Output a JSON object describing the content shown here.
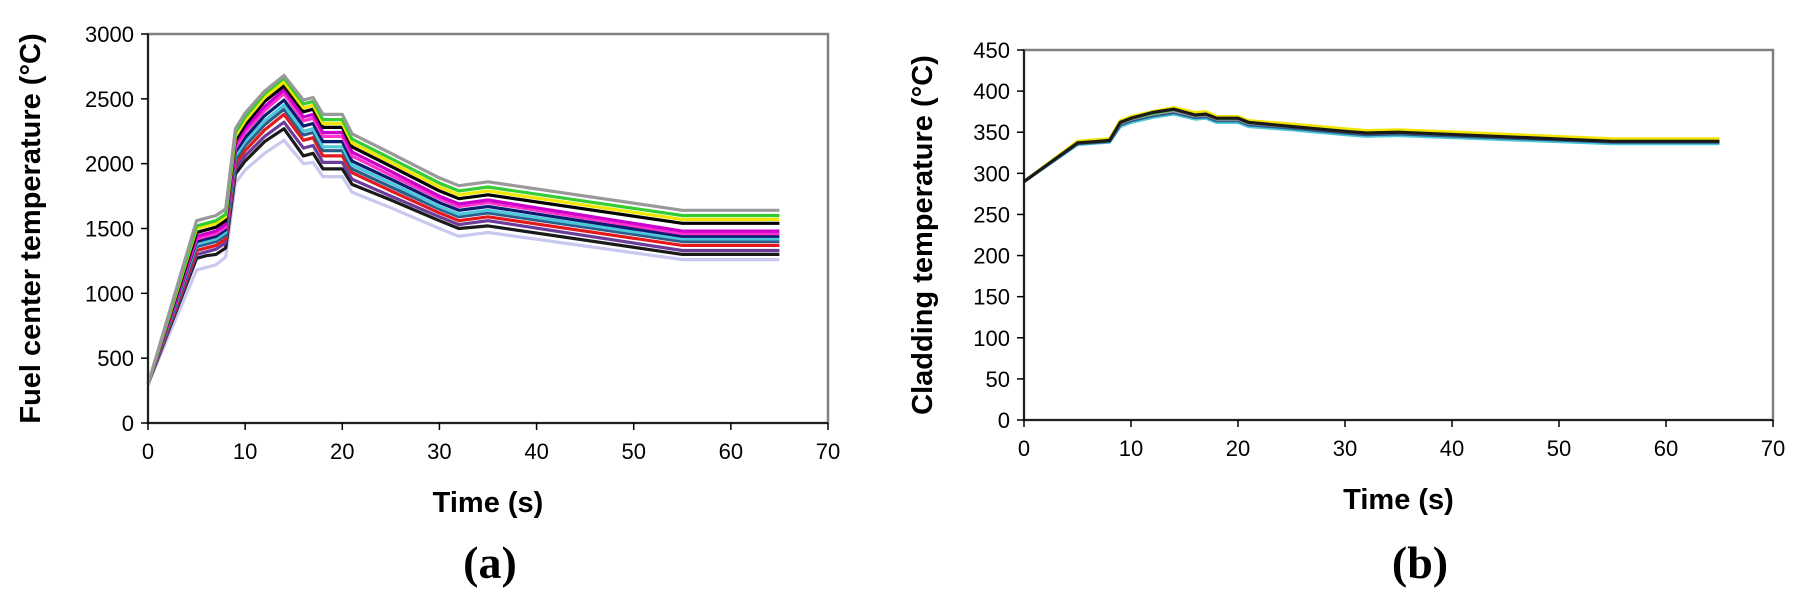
{
  "chart_data": [
    {
      "type": "line",
      "panel_label": "(a)",
      "xlabel": "Time (s)",
      "ylabel": "Fuel center temperature (°C)",
      "xlim": [
        0,
        70
      ],
      "ylim": [
        0,
        3000
      ],
      "xticks": [
        0,
        10,
        20,
        30,
        40,
        50,
        60,
        70
      ],
      "yticks": [
        0,
        500,
        1000,
        1500,
        2000,
        2500,
        3000
      ],
      "grid": false,
      "x": [
        0,
        5,
        6,
        7,
        8,
        9,
        10,
        12,
        14,
        16,
        17,
        18,
        20,
        21,
        25,
        30,
        32,
        35,
        55,
        65
      ],
      "series": [
        {
          "color": "#c8c8f0",
          "values": [
            300,
            1180,
            1200,
            1220,
            1280,
            1850,
            1950,
            2080,
            2180,
            2000,
            2010,
            1900,
            1900,
            1780,
            1660,
            1500,
            1440,
            1470,
            1260,
            1260
          ]
        },
        {
          "color": "#1a1a1a",
          "values": [
            300,
            1270,
            1290,
            1300,
            1350,
            1920,
            2020,
            2170,
            2270,
            2060,
            2080,
            1960,
            1960,
            1840,
            1720,
            1560,
            1500,
            1520,
            1300,
            1300
          ]
        },
        {
          "color": "#6a3d9a",
          "values": [
            300,
            1300,
            1320,
            1340,
            1390,
            1960,
            2060,
            2210,
            2320,
            2120,
            2140,
            2010,
            2010,
            1880,
            1750,
            1590,
            1530,
            1560,
            1330,
            1330
          ]
        },
        {
          "color": "#e31a1c",
          "values": [
            300,
            1330,
            1350,
            1370,
            1420,
            2000,
            2100,
            2260,
            2380,
            2180,
            2200,
            2060,
            2060,
            1930,
            1790,
            1620,
            1560,
            1590,
            1370,
            1370
          ]
        },
        {
          "color": "#2b5c8a",
          "values": [
            300,
            1360,
            1380,
            1400,
            1450,
            2030,
            2140,
            2300,
            2420,
            2220,
            2240,
            2100,
            2100,
            1960,
            1820,
            1650,
            1590,
            1620,
            1400,
            1400
          ]
        },
        {
          "color": "#4ec8d8",
          "values": [
            300,
            1380,
            1400,
            1420,
            1470,
            2060,
            2170,
            2330,
            2450,
            2250,
            2270,
            2130,
            2130,
            1990,
            1850,
            1670,
            1610,
            1640,
            1420,
            1420
          ]
        },
        {
          "color": "#0b1d6e",
          "values": [
            300,
            1400,
            1420,
            1440,
            1490,
            2090,
            2200,
            2370,
            2490,
            2290,
            2310,
            2170,
            2170,
            2020,
            1880,
            1700,
            1640,
            1670,
            1440,
            1440
          ]
        },
        {
          "color": "#ff33cc",
          "values": [
            300,
            1420,
            1440,
            1460,
            1510,
            2120,
            2240,
            2410,
            2540,
            2330,
            2350,
            2210,
            2210,
            2060,
            1910,
            1730,
            1670,
            1700,
            1460,
            1460
          ]
        },
        {
          "color": "#cc00cc",
          "values": [
            300,
            1440,
            1460,
            1480,
            1530,
            2150,
            2270,
            2440,
            2570,
            2360,
            2380,
            2240,
            2240,
            2090,
            1940,
            1750,
            1690,
            1720,
            1480,
            1480
          ]
        },
        {
          "color": "#000000",
          "values": [
            300,
            1470,
            1490,
            1510,
            1560,
            2180,
            2300,
            2480,
            2600,
            2400,
            2420,
            2280,
            2280,
            2130,
            1980,
            1790,
            1730,
            1760,
            1540,
            1540
          ]
        },
        {
          "color": "#f2e600",
          "values": [
            300,
            1500,
            1520,
            1540,
            1590,
            2210,
            2330,
            2510,
            2630,
            2430,
            2450,
            2310,
            2310,
            2160,
            2010,
            1820,
            1760,
            1790,
            1570,
            1570
          ]
        },
        {
          "color": "#33cc33",
          "values": [
            300,
            1520,
            1540,
            1560,
            1610,
            2240,
            2360,
            2540,
            2660,
            2460,
            2480,
            2340,
            2340,
            2190,
            2040,
            1850,
            1790,
            1820,
            1600,
            1600
          ]
        },
        {
          "color": "#999999",
          "values": [
            300,
            1560,
            1580,
            1600,
            1650,
            2270,
            2390,
            2560,
            2680,
            2490,
            2510,
            2380,
            2380,
            2230,
            2080,
            1890,
            1830,
            1860,
            1640,
            1640
          ]
        }
      ]
    },
    {
      "type": "line",
      "panel_label": "(b)",
      "xlabel": "Time (s)",
      "ylabel": "Cladding temperature (°C)",
      "xlim": [
        0,
        70
      ],
      "ylim": [
        0,
        450
      ],
      "xticks": [
        0,
        10,
        20,
        30,
        40,
        50,
        60,
        70
      ],
      "yticks": [
        0,
        50,
        100,
        150,
        200,
        250,
        300,
        350,
        400,
        450
      ],
      "grid": false,
      "x": [
        0,
        5,
        6,
        7,
        8,
        9,
        10,
        12,
        14,
        16,
        17,
        18,
        20,
        21,
        25,
        30,
        32,
        35,
        55,
        65
      ],
      "series": [
        {
          "color": "#4ec8d8",
          "values": [
            290,
            335,
            336,
            337,
            338,
            357,
            362,
            368,
            372,
            366,
            367,
            362,
            362,
            357,
            353,
            347,
            345,
            346,
            336,
            336
          ]
        },
        {
          "color": "#2b5c8a",
          "values": [
            290,
            336,
            337,
            338,
            339,
            359,
            364,
            370,
            374,
            368,
            369,
            364,
            364,
            359,
            355,
            349,
            347,
            348,
            338,
            338
          ]
        },
        {
          "color": "#999999",
          "values": [
            290,
            337,
            338,
            339,
            340,
            361,
            366,
            372,
            376,
            370,
            371,
            366,
            366,
            361,
            357,
            351,
            349,
            350,
            340,
            340
          ]
        },
        {
          "color": "#33cc33",
          "values": [
            290,
            338,
            339,
            340,
            341,
            362,
            367,
            373,
            378,
            372,
            373,
            367,
            367,
            362,
            358,
            352,
            350,
            351,
            341,
            341
          ]
        },
        {
          "color": "#f2e600",
          "values": [
            290,
            339,
            340,
            341,
            342,
            364,
            369,
            375,
            380,
            374,
            375,
            369,
            369,
            364,
            360,
            354,
            352,
            353,
            342,
            342
          ]
        },
        {
          "color": "#1a1a1a",
          "values": [
            290,
            337,
            338,
            339,
            340,
            362,
            367,
            374,
            378,
            371,
            372,
            367,
            367,
            362,
            357,
            351,
            349,
            350,
            339,
            339
          ]
        }
      ]
    }
  ]
}
